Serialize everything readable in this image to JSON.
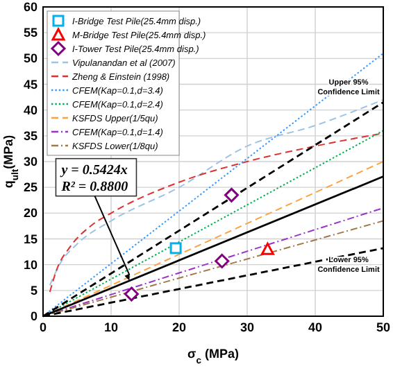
{
  "chart_data": {
    "type": "line",
    "xlabel": "σ$_{c}$ (MPa)",
    "ylabel": "q$_{ult}$(MPa)",
    "xlim": [
      0,
      50
    ],
    "ylim": [
      0,
      60
    ],
    "xticks": [
      0,
      10,
      20,
      30,
      40,
      50
    ],
    "yticks": [
      0,
      5,
      10,
      15,
      20,
      25,
      30,
      35,
      40,
      45,
      50,
      55,
      60
    ],
    "grid": true,
    "legend": "top left",
    "series": [
      {
        "type": "scatter",
        "name": "I-Bridge Test Pile(25.4mm disp.)",
        "color": "#00b0f0",
        "marker": "square",
        "x": [
          19.5
        ],
        "values": [
          13.2
        ]
      },
      {
        "type": "scatter",
        "name": "M-Bridge Test Pile(25.4mm disp.)",
        "color": "#ff0000",
        "marker": "triangle",
        "x": [
          33
        ],
        "values": [
          13
        ]
      },
      {
        "type": "scatter",
        "name": "I-Tower Test Pile(25.4mm disp.)",
        "color": "#800080",
        "marker": "diamond",
        "x": [
          13,
          26.3,
          27.7
        ],
        "values": [
          4.3,
          10.7,
          23.5
        ]
      },
      {
        "name": "Vipulanandan et al (2007)",
        "color": "#9dc3e6",
        "line_style": "dashed",
        "x": [
          1,
          2.5,
          5,
          10,
          20,
          30,
          40,
          50
        ],
        "values": [
          6,
          10.2,
          14,
          18.5,
          25,
          33,
          37,
          42
        ]
      },
      {
        "name": "Zheng & Einstein (1998)",
        "color": "#e03030",
        "line_style": "dashed",
        "x": [
          1,
          2,
          4,
          7,
          10,
          20,
          30,
          40,
          50
        ],
        "values": [
          4.7,
          9,
          13.5,
          17.5,
          20,
          26,
          30,
          33,
          35.5
        ]
      },
      {
        "name": "CFEM(Kap=0.1,d=3.4)",
        "color": "#3399ff",
        "line_style": "dotted",
        "x": [
          0,
          50
        ],
        "values": [
          0,
          51
        ]
      },
      {
        "name": "CFEM(Kap=0.1,d=2.4)",
        "color": "#00b050",
        "line_style": "dotted",
        "x": [
          0,
          50
        ],
        "values": [
          0,
          36
        ]
      },
      {
        "name": "KSFDS Upper(1/5qu)",
        "color": "#ffa040",
        "line_style": "dashed",
        "x": [
          0,
          50
        ],
        "values": [
          0,
          30
        ]
      },
      {
        "name": "CFEM(Kap=0.1,d=1.4)",
        "color": "#9933cc",
        "line_style": "dashdot",
        "x": [
          0,
          50
        ],
        "values": [
          0,
          21
        ]
      },
      {
        "name": "KSFDS Lower(1/8qu)",
        "color": "#a0784a",
        "line_style": "dashdot",
        "x": [
          0,
          50
        ],
        "values": [
          0,
          18.5
        ]
      },
      {
        "color": "#000000",
        "line_style": "solid",
        "x": [
          0,
          50
        ],
        "values": [
          0,
          27.1
        ]
      },
      {
        "color": "#000000",
        "line_style": "dashed",
        "x": [
          0,
          50
        ],
        "values": [
          0,
          41.5
        ]
      },
      {
        "color": "#000000",
        "line_style": "dashed",
        "x": [
          0,
          50
        ],
        "values": [
          0,
          13.2
        ]
      }
    ],
    "annotations": [
      {
        "text": "y = 0.5424x",
        "x": 12.7,
        "y": 6.9
      },
      "R² = 0.8800",
      "Upper 95% Confidence Limit",
      "Lower 95% Confidence Limit"
    ]
  }
}
